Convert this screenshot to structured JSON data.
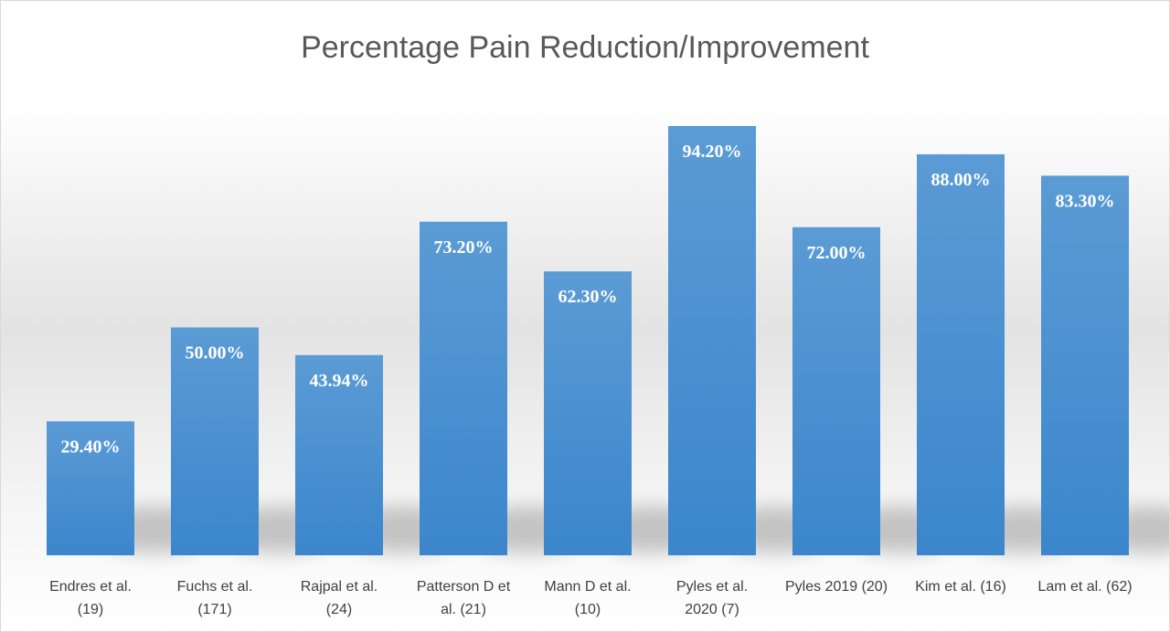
{
  "chart_data": {
    "type": "bar",
    "title": "Percentage Pain Reduction/Improvement",
    "categories": [
      [
        "Endres et al.",
        "(19)"
      ],
      [
        "Fuchs et al.",
        "(171)"
      ],
      [
        "Rajpal et al.",
        "(24)"
      ],
      [
        "Patterson D et",
        "al. (21)"
      ],
      [
        "Mann D et al.",
        "(10)"
      ],
      [
        "Pyles et al.",
        "2020 (7)"
      ],
      [
        "Pyles 2019 (20)"
      ],
      [
        "Kim et al. (16)"
      ],
      [
        "Lam et al. (62)"
      ]
    ],
    "values": [
      29.4,
      50.0,
      43.94,
      73.2,
      62.3,
      94.2,
      72.0,
      88.0,
      83.3
    ],
    "value_labels": [
      "29.40%",
      "50.00%",
      "43.94%",
      "73.20%",
      "62.30%",
      "94.20%",
      "72.00%",
      "88.00%",
      "83.30%"
    ],
    "ylim": [
      0,
      100
    ],
    "xlabel": "",
    "ylabel": "",
    "grid": false,
    "legend": "none",
    "bar_color": "#4a90d9",
    "bar_color_light": "#5b9bd5",
    "bar_color_dark": "#3b86cc"
  }
}
